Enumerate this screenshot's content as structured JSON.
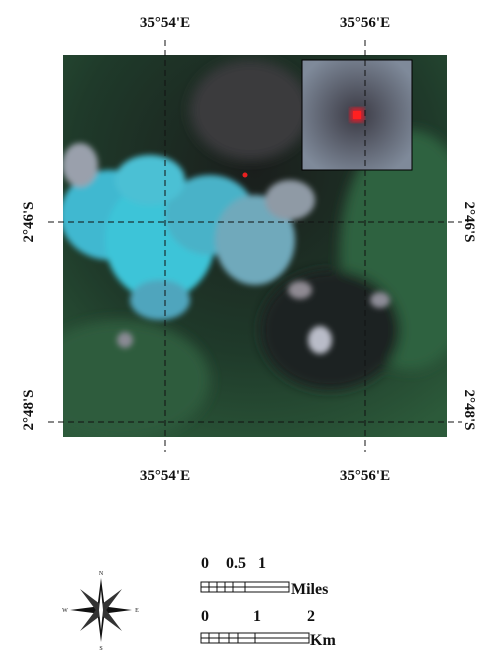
{
  "map": {
    "graticule": {
      "top": [
        "35°54'E",
        "35°56'E"
      ],
      "bottom": [
        "35°54'E",
        "35°56'E"
      ],
      "left": [
        "2°46'S",
        "2°48'S"
      ],
      "right": [
        "2°46'S",
        "2°48'S"
      ]
    },
    "scale_bar": {
      "miles": {
        "ticks": [
          "0",
          "0.5",
          "1"
        ],
        "unit": "Miles"
      },
      "km": {
        "ticks": [
          "0",
          "1",
          "2"
        ],
        "unit": "Km"
      }
    },
    "north_arrow": {
      "north": "N",
      "south": "S",
      "east": "E",
      "west": "W"
    }
  }
}
